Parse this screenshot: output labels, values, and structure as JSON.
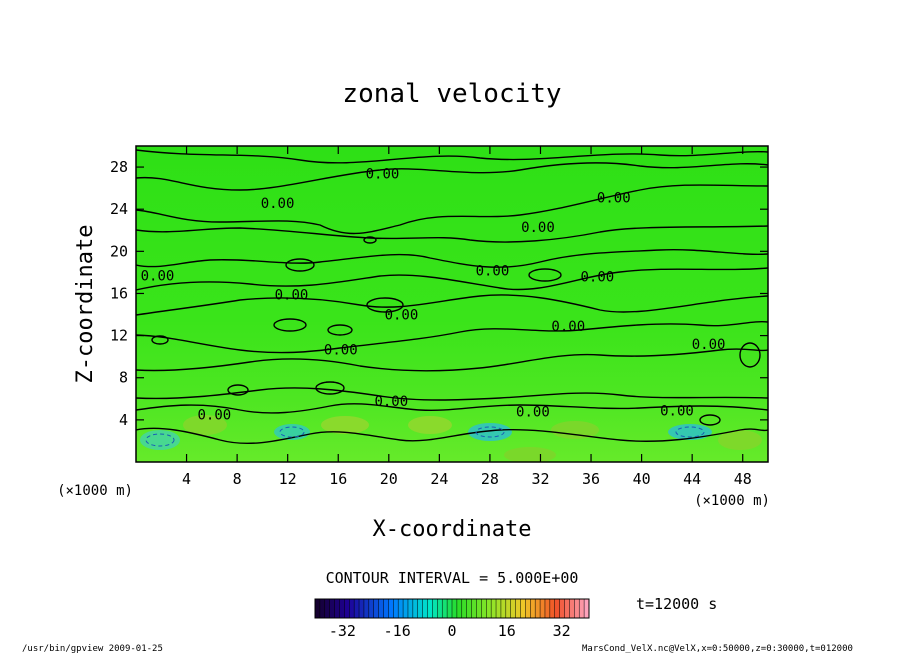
{
  "chart_data": {
    "type": "heatmap",
    "title": "zonal velocity",
    "xlabel": "X-coordinate",
    "ylabel": "Z-coordinate",
    "x_units": "(×1000 m)",
    "y_units": "(×1000 m)",
    "xlim": [
      0,
      50
    ],
    "ylim": [
      0,
      30
    ],
    "x_ticks": [
      4,
      8,
      12,
      16,
      20,
      24,
      28,
      32,
      36,
      40,
      44,
      48
    ],
    "y_ticks": [
      4,
      8,
      12,
      16,
      20,
      24,
      28
    ],
    "contour_interval_text": "CONTOUR INTERVAL = 5.000E+00",
    "contour_label_text": "0.00",
    "contour_labels": [
      {
        "x": 19.5,
        "z": 27.4
      },
      {
        "x": 11.2,
        "z": 24.6
      },
      {
        "x": 37.8,
        "z": 25.1
      },
      {
        "x": 31.8,
        "z": 22.3
      },
      {
        "x": 1.7,
        "z": 17.7
      },
      {
        "x": 28.2,
        "z": 18.2
      },
      {
        "x": 36.5,
        "z": 17.6
      },
      {
        "x": 12.3,
        "z": 15.9
      },
      {
        "x": 21.0,
        "z": 14.0
      },
      {
        "x": 34.2,
        "z": 12.9
      },
      {
        "x": 16.2,
        "z": 10.7
      },
      {
        "x": 45.3,
        "z": 11.2
      },
      {
        "x": 20.2,
        "z": 5.8
      },
      {
        "x": 31.4,
        "z": 4.8
      },
      {
        "x": 42.8,
        "z": 4.9
      },
      {
        "x": 6.2,
        "z": 4.5
      }
    ],
    "colorbar": {
      "ticks": [
        -32,
        -16,
        0,
        16,
        32
      ],
      "range": [
        -40,
        40
      ]
    },
    "time_text": "t=12000 s",
    "footer_left": "/usr/bin/gpview  2009-01-25",
    "footer_right": "MarsCond_VelX.nc@VelX,x=0:50000,z=0:30000,t=012000"
  }
}
